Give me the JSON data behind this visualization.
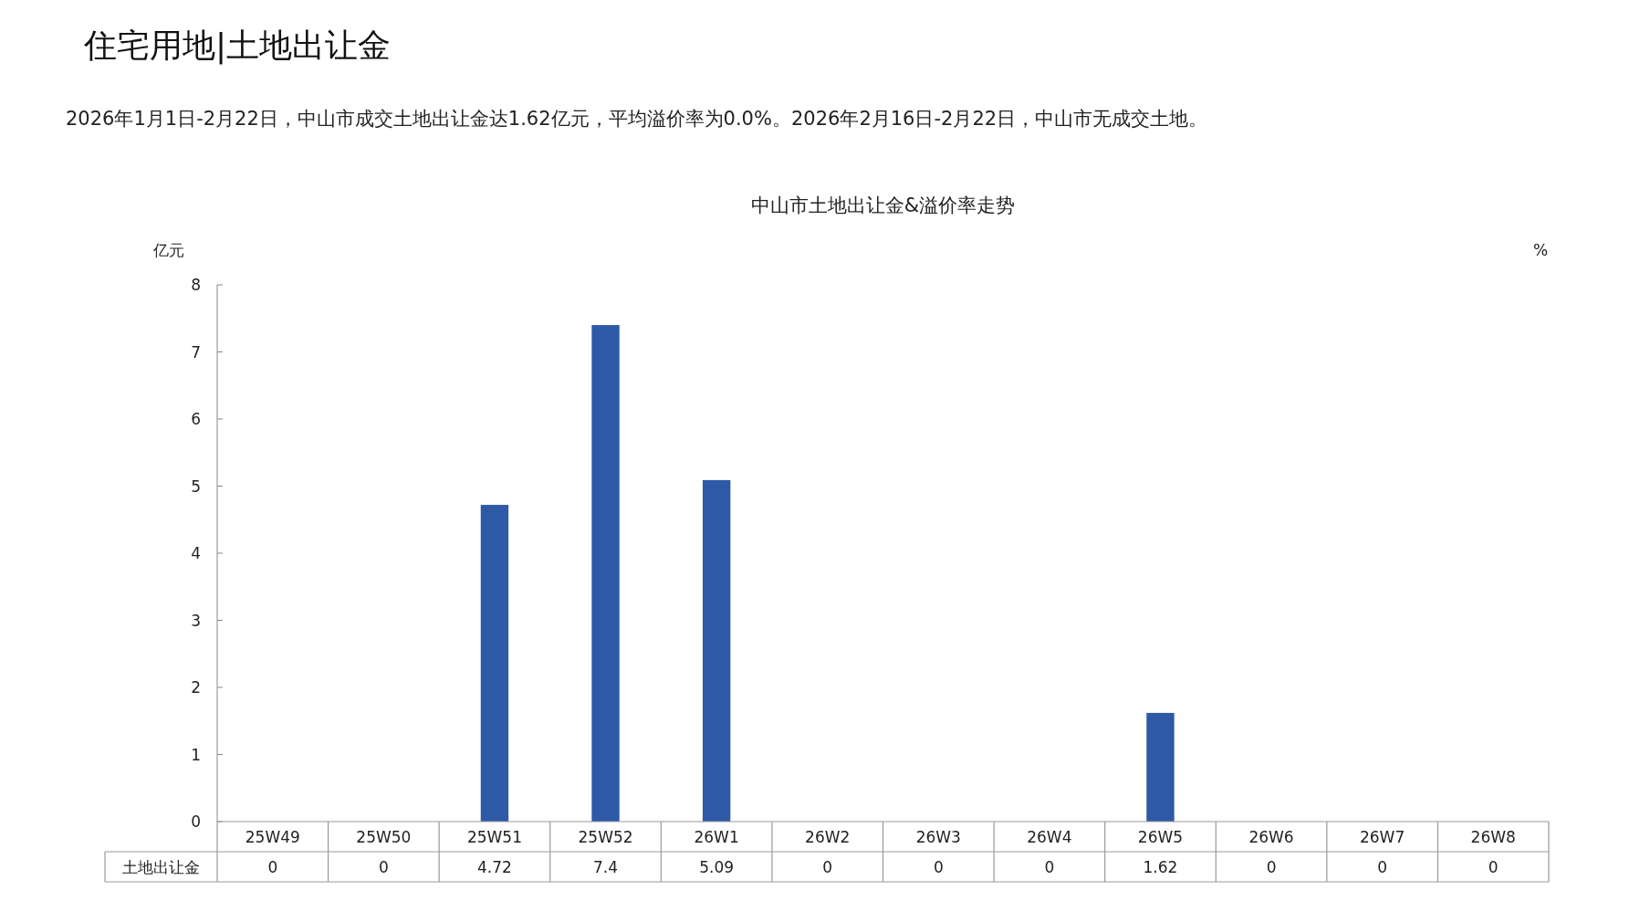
{
  "chart_data": {
    "type": "bar",
    "title": "中山市土地出让金&溢价率走势",
    "subtitle": "2026年1月1日-2月22日，中山市成交土地出让金达1.62亿元，平均溢价率为0.0%。2026年2月16日-2月22日，中山市无成交土地。",
    "annotations": [
      "住宅用地|土地出让金"
    ],
    "ylabel": "亿元",
    "y2label": "%",
    "categories": [
      "25W49",
      "25W50",
      "25W51",
      "25W52",
      "26W1",
      "26W2",
      "26W3",
      "26W4",
      "26W5",
      "26W6",
      "26W7",
      "26W8"
    ],
    "series": [
      {
        "name": "土地出让金",
        "color": "#2e59a7",
        "values": [
          0,
          0,
          4.72,
          7.4,
          5.09,
          0,
          0,
          0,
          1.62,
          0,
          0,
          0
        ]
      }
    ],
    "ylim": [
      0,
      8
    ],
    "yticks": [
      0,
      1,
      2,
      3,
      4,
      5,
      6,
      7,
      8
    ],
    "data_labels": true,
    "grid": false
  }
}
